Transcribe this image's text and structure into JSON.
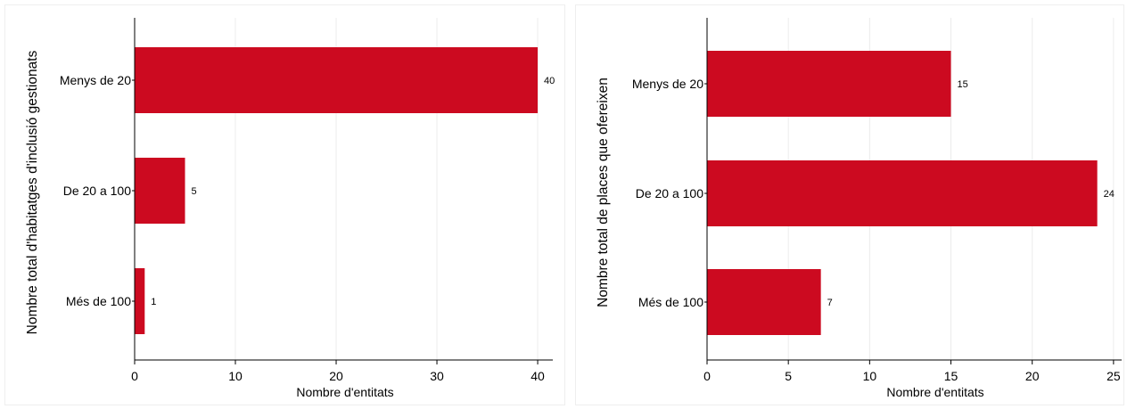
{
  "chart_data": [
    {
      "type": "bar",
      "orientation": "horizontal",
      "categories": [
        "Menys de 20",
        "De 20 a 100",
        "Més de 100"
      ],
      "values": [
        40,
        5,
        1
      ],
      "data_labels": [
        "40",
        "5",
        "1"
      ],
      "xlabel": "Nombre d'entitats",
      "ylabel": "Nombre total d'habitatges d'inclusió gestionats",
      "xlim": [
        0,
        41.5
      ],
      "xticks": [
        0,
        10,
        20,
        30,
        40
      ],
      "grid": true,
      "bar_color": "#CC0A20"
    },
    {
      "type": "bar",
      "orientation": "horizontal",
      "categories": [
        "Menys de 20",
        "De 20 a 100",
        "Més de 100"
      ],
      "values": [
        15,
        24,
        7
      ],
      "data_labels": [
        "15",
        "24",
        "7"
      ],
      "xlabel": "Nombre d'entitats",
      "ylabel": "Nombre total de places que ofereixen",
      "xlim": [
        0,
        25.5
      ],
      "xticks": [
        0,
        5,
        10,
        15,
        20,
        25
      ],
      "grid": true,
      "bar_color": "#CC0A20"
    }
  ]
}
